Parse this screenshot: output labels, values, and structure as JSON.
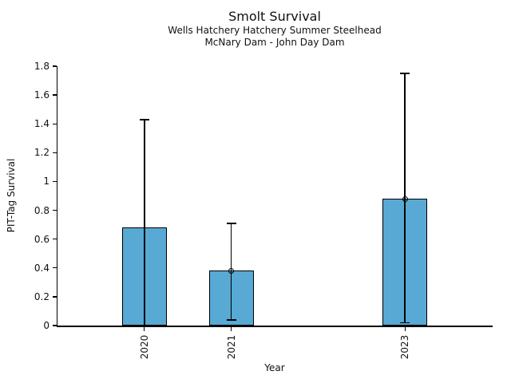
{
  "chart_data": {
    "type": "bar",
    "title": "Smolt Survival",
    "subtitle_lines": [
      "Wells Hatchery Hatchery Summer Steelhead",
      "McNary Dam - John Day Dam"
    ],
    "xlabel": "Year",
    "ylabel": "PIT-Tag Survival",
    "xlim": [
      2019,
      2024
    ],
    "ylim": [
      0,
      1.8
    ],
    "yticks": [
      "0",
      "0.2",
      "0.4",
      "0.6",
      "0.8",
      "1",
      "1.2",
      "1.4",
      "1.6",
      "1.8"
    ],
    "grid": false,
    "legend": false,
    "colors": {
      "bar_fill": "#58a9d3",
      "bar_edge": "#000000",
      "error_bar": "#000000",
      "text": "#111111"
    },
    "categories": [
      "2020",
      "2021",
      "2023"
    ],
    "series": [
      {
        "name": "PIT-Tag Survival",
        "points": [
          {
            "year": 2020,
            "x_label": "2020",
            "value": 0.68,
            "ci_low": 0.0,
            "ci_high": 1.43,
            "marker": false
          },
          {
            "year": 2021,
            "x_label": "2021",
            "value": 0.38,
            "ci_low": 0.04,
            "ci_high": 0.71,
            "marker": true
          },
          {
            "year": 2023,
            "x_label": "2023",
            "value": 0.88,
            "ci_low": 0.02,
            "ci_high": 1.75,
            "marker": true
          }
        ]
      }
    ]
  }
}
